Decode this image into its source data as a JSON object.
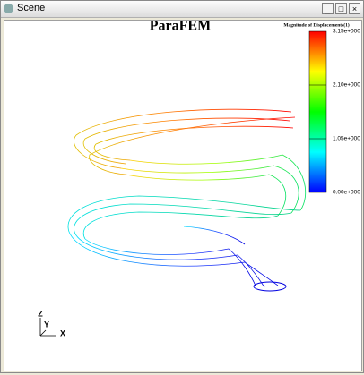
{
  "window": {
    "title": "Scene"
  },
  "scene": {
    "title": "ParaFEM",
    "legend": {
      "title": "Magnitude of Displacements(1)",
      "labels": [
        "3.15e+000",
        "2.10e+000",
        "1.05e+000",
        "0.00e+000"
      ]
    },
    "axes": {
      "z": "Z",
      "y": "Y",
      "x": "X"
    }
  }
}
